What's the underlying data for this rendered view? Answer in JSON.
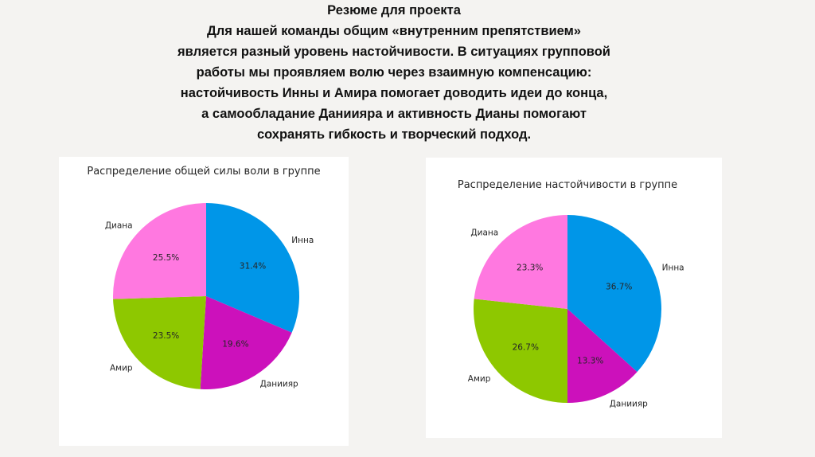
{
  "summary": {
    "heading": "Резюме для проекта",
    "lines": [
      "Для нашей команды общим «внутренним препятствием»",
      "является разный уровень настойчивости. В ситуациях групповой",
      "работы мы проявляем волю через взаимную компенсацию:",
      "настойчивость Инны и Амира помогает доводить идеи до конца,",
      "а самообладание Даниияра и активность Дианы помогают",
      "сохранять гибкость и творческий подход."
    ]
  },
  "chart_data": [
    {
      "type": "pie",
      "title": "Распределение общей силы воли в группе",
      "categories": [
        "Инна",
        "Даниияр",
        "Амир",
        "Диана"
      ],
      "values": [
        31.4,
        19.6,
        23.5,
        25.5
      ],
      "value_labels": [
        "31.4%",
        "19.6%",
        "23.5%",
        "25.5%"
      ],
      "colors": [
        "#0096e8",
        "#cc11bb",
        "#8ec800",
        "#ff78e0"
      ],
      "start_angle_deg": 90,
      "direction": "clockwise"
    },
    {
      "type": "pie",
      "title": "Распределение настойчивости в группе",
      "categories": [
        "Инна",
        "Даниияр",
        "Амир",
        "Диана"
      ],
      "values": [
        36.7,
        13.3,
        26.7,
        23.3
      ],
      "value_labels": [
        "36.7%",
        "13.3%",
        "26.7%",
        "23.3%"
      ],
      "colors": [
        "#0096e8",
        "#cc11bb",
        "#8ec800",
        "#ff78e0"
      ],
      "start_angle_deg": 90,
      "direction": "clockwise"
    }
  ]
}
